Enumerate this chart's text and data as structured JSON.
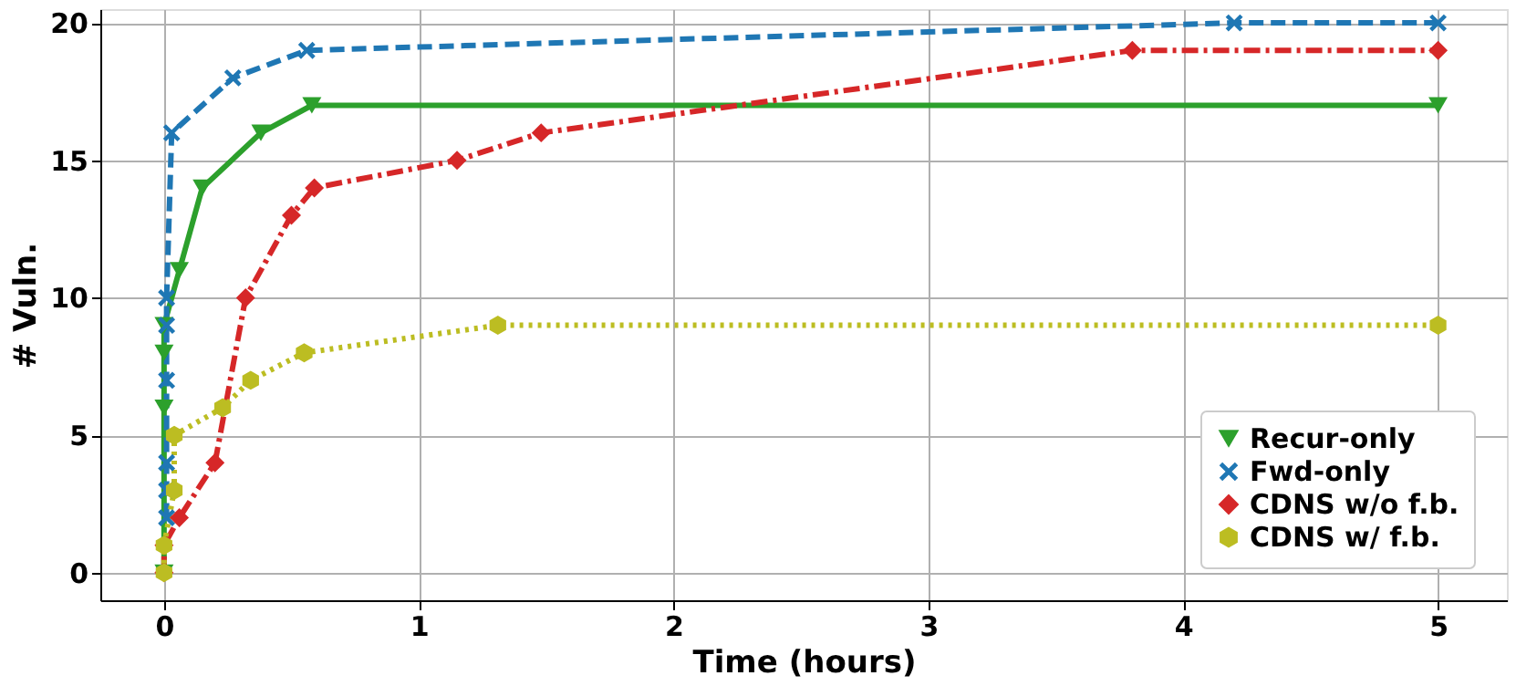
{
  "chart_data": {
    "type": "line",
    "xlabel": "Time (hours)",
    "ylabel": "# Vuln.",
    "xlim": [
      -0.25,
      5.27
    ],
    "ylim": [
      -1,
      20.5
    ],
    "xticks": [
      0,
      1,
      2,
      3,
      4,
      5
    ],
    "yticks": [
      0,
      5,
      10,
      15,
      20
    ],
    "grid": true,
    "legend": "bottom right",
    "series": [
      {
        "name": "Recur-only",
        "color": "#2ca02c",
        "marker": "triangle",
        "line_style": "solid",
        "x": [
          0,
          0,
          0,
          0,
          0.06,
          0.15,
          0.38,
          0.58,
          5
        ],
        "values": [
          0,
          6,
          8,
          9,
          11,
          14,
          16,
          17,
          17
        ]
      },
      {
        "name": "Fwd-only",
        "color": "#1f77b4",
        "marker": "cross",
        "line_style": "dashed",
        "x": [
          0.01,
          0.01,
          0.01,
          0.01,
          0.01,
          0.01,
          0.03,
          0.27,
          0.56,
          4.2,
          5
        ],
        "values": [
          2,
          3,
          4,
          7,
          9,
          10,
          16,
          18,
          19,
          20,
          20
        ]
      },
      {
        "name": "CDNS w/o f.b.",
        "color": "#d62728",
        "marker": "diamond",
        "line_style": "dashdot",
        "x": [
          0,
          0,
          0.06,
          0.2,
          0.32,
          0.5,
          0.59,
          1.15,
          1.48,
          3.8,
          5
        ],
        "values": [
          0,
          1,
          2,
          4,
          10,
          13,
          14,
          15,
          16,
          19,
          19
        ]
      },
      {
        "name": "CDNS w/   f.b.",
        "color": "#bcbd22",
        "marker": "circle",
        "line_style": "dotted",
        "x": [
          0,
          0,
          0.04,
          0.04,
          0.23,
          0.34,
          0.55,
          1.31,
          5
        ],
        "values": [
          0,
          1,
          3,
          5,
          6,
          7,
          8,
          9,
          9
        ]
      }
    ]
  }
}
